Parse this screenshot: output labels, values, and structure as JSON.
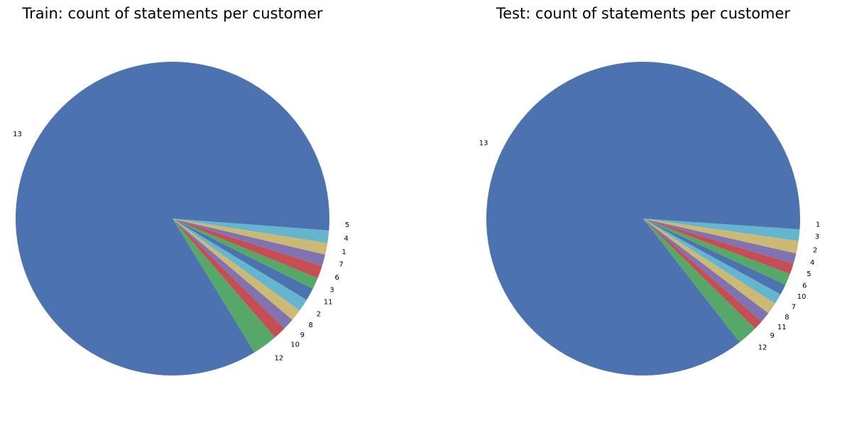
{
  "chart_data": [
    {
      "type": "pie",
      "title": "Train: count of statements per customer",
      "start_angle_deg": 0,
      "direction": "counterclockwise",
      "labels": [
        "13",
        "12",
        "10",
        "9",
        "8",
        "2",
        "11",
        "3",
        "6",
        "7",
        "1",
        "4",
        "5"
      ],
      "values": [
        84.0,
        2.6,
        1.3,
        1.2,
        1.2,
        1.3,
        1.3,
        1.2,
        1.3,
        1.2,
        1.2,
        1.3,
        1.2
      ],
      "colors": [
        "#4c72b0",
        "#55a868",
        "#c44e52",
        "#8172b2",
        "#ccb974",
        "#64b5cd",
        "#4c72b0",
        "#55a868",
        "#c44e52",
        "#8172b2",
        "#ccb974",
        "#64b5cd",
        "#4c72b0"
      ]
    },
    {
      "type": "pie",
      "title": "Test: count of statements per customer",
      "start_angle_deg": 0,
      "direction": "counterclockwise",
      "labels": [
        "13",
        "12",
        "9",
        "11",
        "8",
        "7",
        "10",
        "6",
        "5",
        "4",
        "2",
        "3",
        "1"
      ],
      "values": [
        86.4,
        2.1,
        1.0,
        1.1,
        1.2,
        1.1,
        1.1,
        1.2,
        1.1,
        1.1,
        1.3,
        1.2,
        1.1
      ],
      "colors": [
        "#4c72b0",
        "#55a868",
        "#c44e52",
        "#8172b2",
        "#ccb974",
        "#64b5cd",
        "#4c72b0",
        "#55a868",
        "#c44e52",
        "#8172b2",
        "#ccb974",
        "#64b5cd",
        "#4c72b0"
      ]
    }
  ]
}
